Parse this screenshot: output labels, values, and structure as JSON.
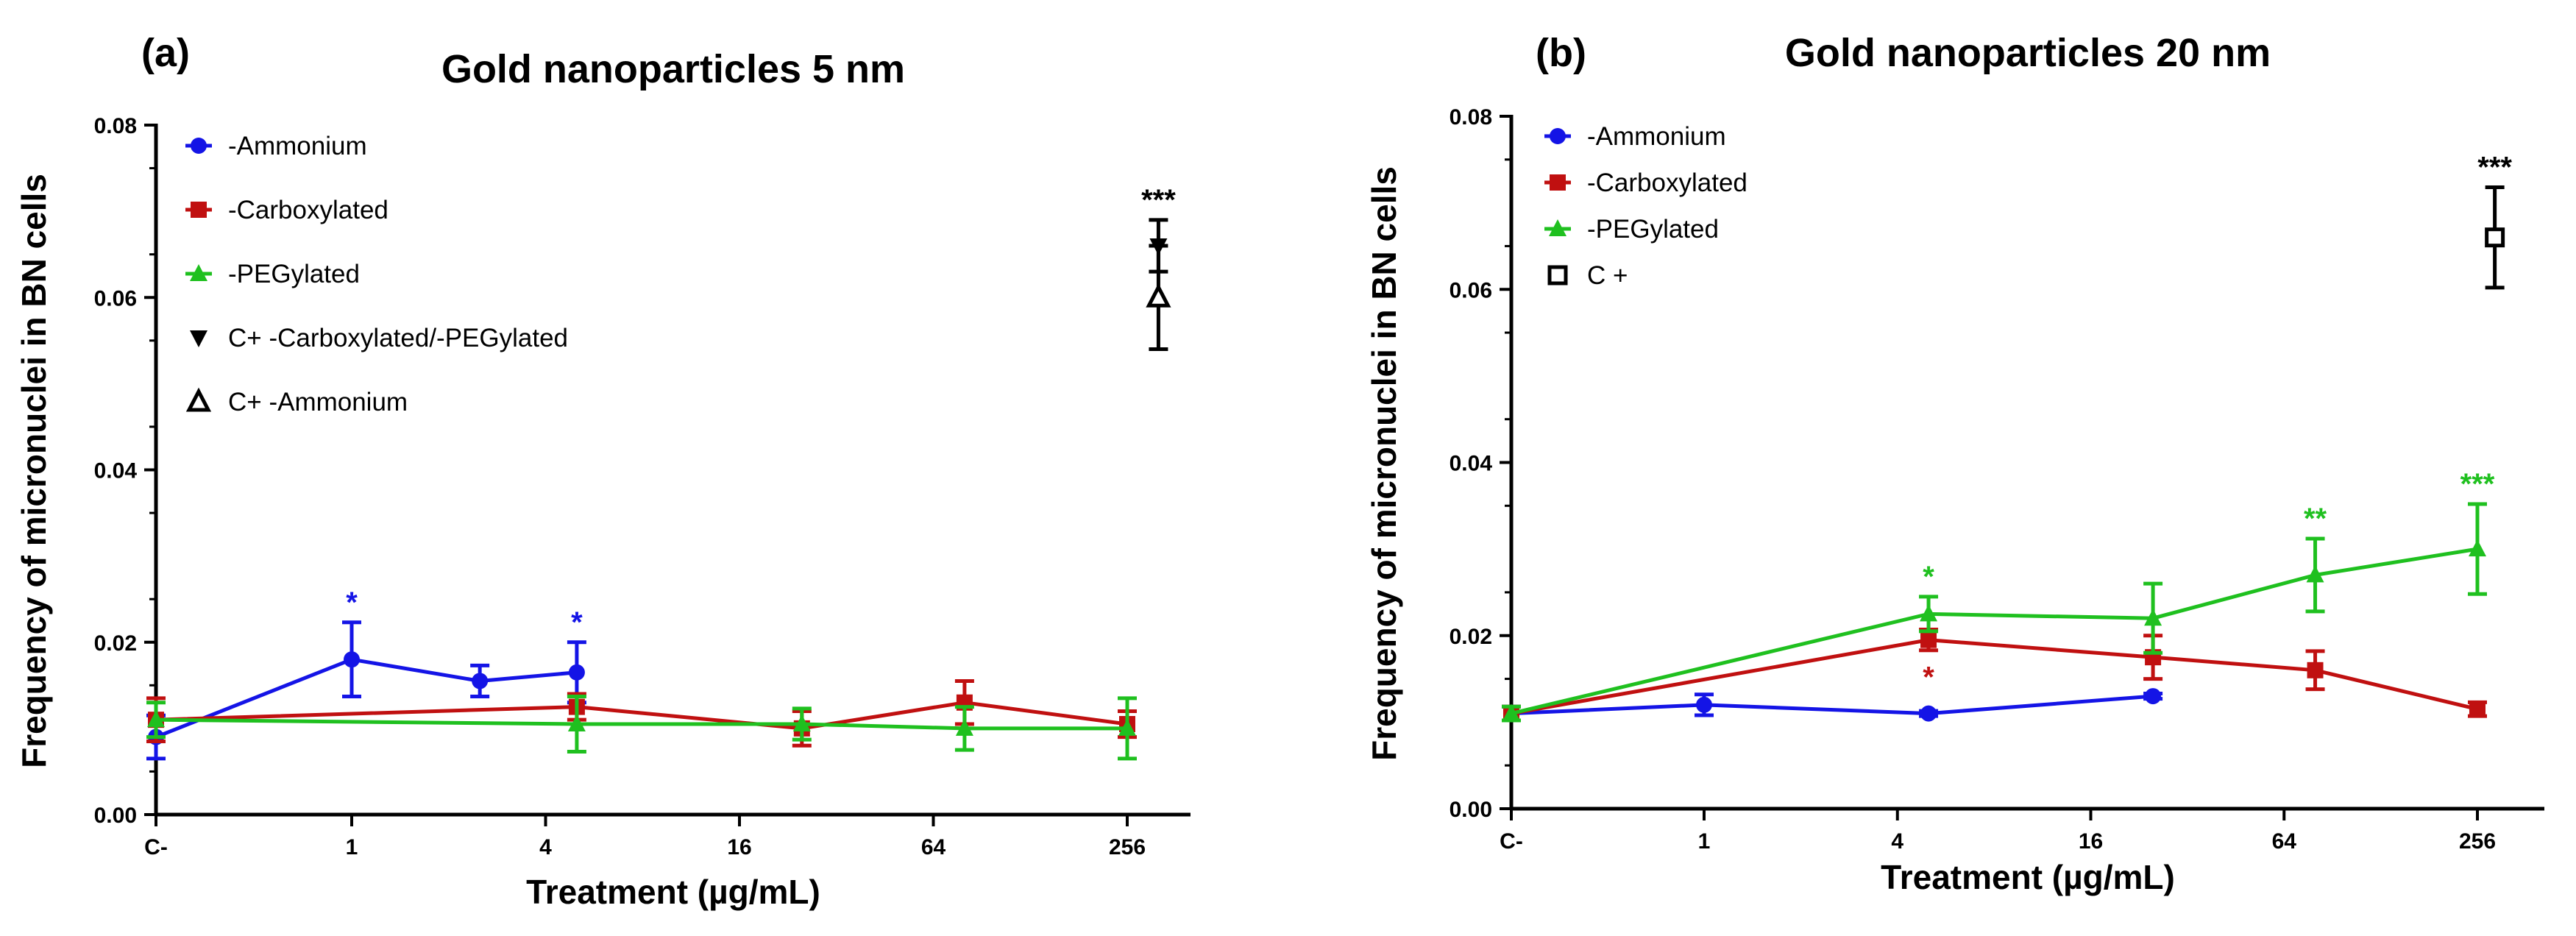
{
  "colors": {
    "ammonium": "#1414e6",
    "carboxylated": "#c01010",
    "pegylated": "#1fc01f",
    "control": "#000000"
  },
  "chart_data": [
    {
      "id": "a",
      "type": "line",
      "panel_label": "(a)",
      "title": "Gold nanoparticles 5 nm",
      "xlabel": "Treatment (µg/mL)",
      "ylabel": "Frequency of micronuclei in BN cells",
      "x_ticks": [
        "C-",
        "1",
        "4",
        "16",
        "64",
        "256"
      ],
      "y_ticks": [
        "0.00",
        "0.02",
        "0.04",
        "0.06",
        "0.08"
      ],
      "ylim": [
        0,
        0.08
      ],
      "legend_position": "top-left",
      "series": [
        {
          "name": "-Ammonium",
          "color_key": "ammonium",
          "marker": "circle",
          "points": [
            {
              "x": "C-",
              "y": 0.009,
              "err": 0.0025
            },
            {
              "x": 1,
              "y": 0.018,
              "err": 0.0043,
              "ann": "*"
            },
            {
              "x": 2.5,
              "y": 0.0155,
              "err": 0.0018
            },
            {
              "x": 5,
              "y": 0.0165,
              "err": 0.0035,
              "ann": "*"
            }
          ]
        },
        {
          "name": "-Carboxylated",
          "color_key": "carboxylated",
          "marker": "square",
          "points": [
            {
              "x": "C-",
              "y": 0.011,
              "err": 0.0025
            },
            {
              "x": 5,
              "y": 0.0125,
              "err": 0.0015
            },
            {
              "x": 25,
              "y": 0.01,
              "err": 0.002
            },
            {
              "x": 80,
              "y": 0.013,
              "err": 0.0025
            },
            {
              "x": 256,
              "y": 0.0105,
              "err": 0.0015
            }
          ]
        },
        {
          "name": "-PEGylated",
          "color_key": "pegylated",
          "marker": "triangle-up",
          "points": [
            {
              "x": "C-",
              "y": 0.011,
              "err": 0.002
            },
            {
              "x": 5,
              "y": 0.0105,
              "err": 0.0032
            },
            {
              "x": 25,
              "y": 0.0105,
              "err": 0.0018
            },
            {
              "x": 80,
              "y": 0.01,
              "err": 0.0025
            },
            {
              "x": 256,
              "y": 0.01,
              "err": 0.0035
            }
          ]
        },
        {
          "name": "C+ -Carboxylated/-PEGylated",
          "color_key": "control",
          "marker": "triangle-down",
          "no_line": true,
          "points": [
            {
              "x": 320,
              "y": 0.066,
              "err": 0.003,
              "ann": "***"
            }
          ]
        },
        {
          "name": "C+ -Ammonium",
          "color_key": "control",
          "marker": "triangle-up-open",
          "no_line": true,
          "points": [
            {
              "x": 320,
              "y": 0.06,
              "err": 0.006
            }
          ]
        }
      ]
    },
    {
      "id": "b",
      "type": "line",
      "panel_label": "(b)",
      "title": "Gold nanoparticles 20 nm",
      "xlabel": "Treatment (µg/mL)",
      "ylabel": "Frequency of micronuclei in BN cells",
      "x_ticks": [
        "C-",
        "1",
        "4",
        "16",
        "64",
        "256"
      ],
      "y_ticks": [
        "0.00",
        "0.02",
        "0.04",
        "0.06",
        "0.08"
      ],
      "ylim": [
        0,
        0.08
      ],
      "legend_position": "top-left",
      "series": [
        {
          "name": "-Ammonium",
          "color_key": "ammonium",
          "marker": "circle",
          "points": [
            {
              "x": "C-",
              "y": 0.011,
              "err": 0.0008
            },
            {
              "x": 1,
              "y": 0.012,
              "err": 0.0012
            },
            {
              "x": 5,
              "y": 0.011,
              "err": 0.0003
            },
            {
              "x": 25,
              "y": 0.013,
              "err": 0.0003
            }
          ]
        },
        {
          "name": "-Carboxylated",
          "color_key": "carboxylated",
          "marker": "square",
          "points": [
            {
              "x": "C-",
              "y": 0.011,
              "err": 0.0008
            },
            {
              "x": 5,
              "y": 0.0195,
              "err": 0.0012,
              "ann": "*",
              "ann_below": true
            },
            {
              "x": 25,
              "y": 0.0175,
              "err": 0.0025
            },
            {
              "x": 80,
              "y": 0.016,
              "err": 0.0022
            },
            {
              "x": 256,
              "y": 0.0115,
              "err": 0.0008
            }
          ]
        },
        {
          "name": "-PEGylated",
          "color_key": "pegylated",
          "marker": "triangle-up",
          "points": [
            {
              "x": "C-",
              "y": 0.011,
              "err": 0.0008
            },
            {
              "x": 5,
              "y": 0.0225,
              "err": 0.002,
              "ann": "*"
            },
            {
              "x": 25,
              "y": 0.022,
              "err": 0.004
            },
            {
              "x": 80,
              "y": 0.027,
              "err": 0.0042,
              "ann": "**"
            },
            {
              "x": 256,
              "y": 0.03,
              "err": 0.0052,
              "ann": "***"
            }
          ]
        },
        {
          "name": "C +",
          "color_key": "control",
          "marker": "square-open",
          "no_line": true,
          "points": [
            {
              "x": 290,
              "y": 0.066,
              "err": 0.0058,
              "ann": "***"
            }
          ]
        }
      ]
    }
  ]
}
